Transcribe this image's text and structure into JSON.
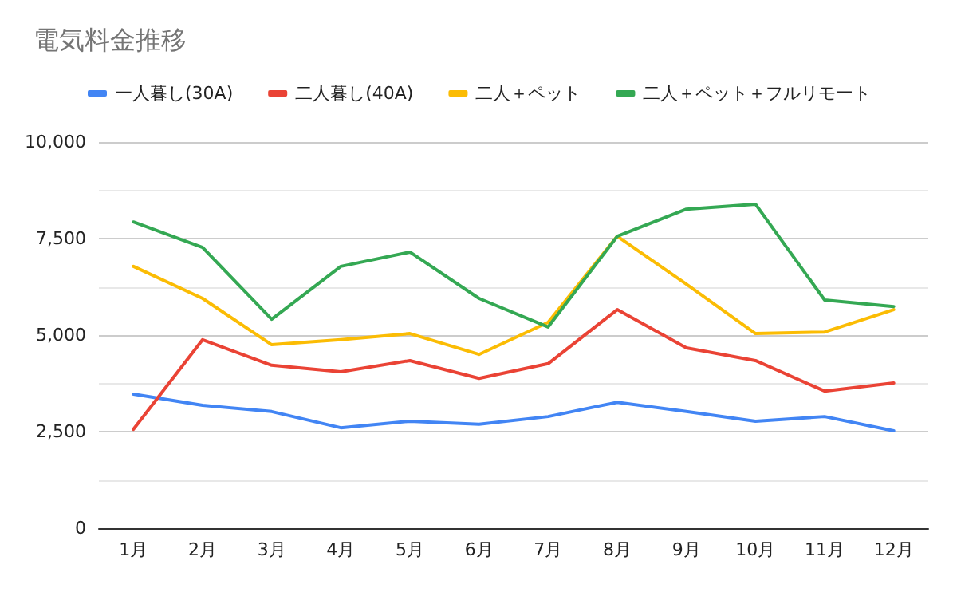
{
  "chart_data": {
    "type": "line",
    "title": "電気料金推移",
    "categories": [
      "1月",
      "2月",
      "3月",
      "4月",
      "5月",
      "6月",
      "7月",
      "8月",
      "9月",
      "10月",
      "11月",
      "12月"
    ],
    "series": [
      {
        "name": "一人暮し(30A)",
        "color": "#4285f4",
        "values": [
          3470,
          3180,
          3020,
          2600,
          2770,
          2690,
          2890,
          3260,
          3020,
          2770,
          2890,
          2520
        ]
      },
      {
        "name": "二人暮し(40A)",
        "color": "#ea4335",
        "values": [
          2560,
          4880,
          4220,
          4050,
          4340,
          3880,
          4260,
          5660,
          4670,
          4340,
          3550,
          3760
        ]
      },
      {
        "name": "二人＋ペット",
        "color": "#fbbc04",
        "values": [
          6780,
          5950,
          4750,
          4880,
          5040,
          4500,
          5330,
          7560,
          6320,
          5040,
          5080,
          5660
        ]
      },
      {
        "name": "二人＋ペット＋フルリモート",
        "color": "#34a853",
        "values": [
          7930,
          7270,
          5410,
          6780,
          7150,
          5950,
          5210,
          7560,
          8260,
          8390,
          5910,
          5740
        ]
      }
    ],
    "ylim": [
      0,
      10000
    ],
    "yticks": [
      0,
      {
        "value": 2500,
        "label": "2,500"
      },
      {
        "value": 5000,
        "label": "5,000"
      },
      {
        "value": 7500,
        "label": "7,500"
      },
      {
        "value": 10000,
        "label": "10,000"
      }
    ],
    "grid": "y",
    "legend": "top left",
    "marker": "none",
    "line_style": "solid"
  }
}
